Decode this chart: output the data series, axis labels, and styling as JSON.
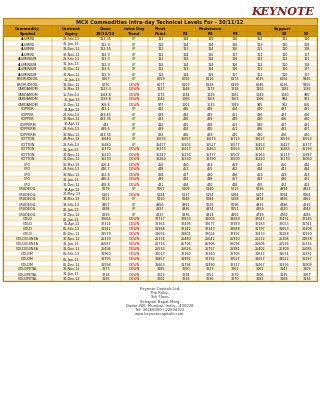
{
  "title": "MCX Commodities Intra-day Technical Levels For - 30/11/12",
  "rows": [
    [
      "ALUMINI",
      "28-Feb-13",
      "113.35",
      "UP",
      "113",
      "114",
      "115",
      "116",
      "112",
      "111",
      "110"
    ],
    [
      "ALUMINI",
      "31-Jan-13",
      "112.9",
      "UP",
      "112",
      "114",
      "114",
      "116",
      "112",
      "110",
      "108"
    ],
    [
      "ALUMINI",
      "31-Dec-12",
      "112.55",
      "UP",
      "112",
      "113",
      "114",
      "116",
      "111",
      "110",
      "108"
    ],
    [
      "ALUMINI",
      "30-Nov-12",
      "112.9",
      "UP",
      "112",
      "114",
      "115",
      "117",
      "111",
      "110",
      "107"
    ],
    [
      "ALUMINIUM",
      "28-Feb-13",
      "113.3",
      "UP",
      "113",
      "114",
      "114",
      "116",
      "113",
      "112",
      "111"
    ],
    [
      "ALUMINIUM",
      "31-Jan-13",
      "112.9",
      "UP",
      "112",
      "114",
      "114",
      "116",
      "112",
      "110",
      "108"
    ],
    [
      "ALUMINIUM",
      "31-Dec-12",
      "112.6",
      "UP",
      "112",
      "113",
      "114",
      "116",
      "111",
      "110",
      "107"
    ],
    [
      "ALUMINIUM",
      "30-Nov-12",
      "112.9",
      "UP",
      "112",
      "114",
      "115",
      "117",
      "111",
      "110",
      "107"
    ],
    [
      "BRCRUDEOIL",
      "15-Jan-13",
      "6067",
      "UP",
      "6059",
      "6092",
      "6116",
      "6173",
      "6035",
      "6002",
      "5945"
    ],
    [
      "BRCRUDEOIL",
      "13-Dec-12",
      "6076",
      "DOWN",
      "6077",
      "6107",
      "6138",
      "6199",
      "6046",
      "6016",
      "5955"
    ],
    [
      "CARDAMOM",
      "15-Mar-13",
      "1123.3",
      "DOWN",
      "1127",
      "1148",
      "1173",
      "1218",
      "1102",
      "1082",
      "1036"
    ],
    [
      "CARDAMOM",
      "15-Feb-13",
      "1068.8",
      "DOWN",
      "1075",
      "1094",
      "1120",
      "1165",
      "1049",
      "1030",
      "985"
    ],
    [
      "CARDAMOM",
      "15-Jan-13",
      "1029.8",
      "DOWN",
      "1042",
      "1066",
      "1103",
      "1163",
      "1006",
      "982",
      "922"
    ],
    [
      "CARDAMOM",
      "15-Dec-12",
      "968.8",
      "DOWN",
      "977",
      "1001",
      "1033",
      "1089",
      "945",
      "922",
      "866"
    ],
    [
      "COPPER",
      "30-Apr-13",
      "443.1",
      "UP",
      "442",
      "446",
      "448",
      "454",
      "440",
      "437",
      "431"
    ],
    [
      "COPPER",
      "28-Feb-13",
      "439.45",
      "UP",
      "439",
      "442",
      "445",
      "451",
      "436",
      "433",
      "426"
    ],
    [
      "COPPER",
      "30-Nov-12",
      "433.35",
      "UP",
      "433",
      "436",
      "439",
      "445",
      "430",
      "426",
      "420"
    ],
    [
      "COPPERM",
      "30-Apr-13",
      "443",
      "UP",
      "442",
      "445",
      "448",
      "453",
      "440",
      "437",
      "431"
    ],
    [
      "COPPERM",
      "28-Feb-13",
      "439.5",
      "UP",
      "439",
      "442",
      "445",
      "451",
      "436",
      "433",
      "427"
    ],
    [
      "COPPERM",
      "30-Nov-12",
      "433.35",
      "UP",
      "433",
      "436",
      "439",
      "445",
      "430",
      "426",
      "420"
    ],
    [
      "COTTON",
      "29-Mar-13",
      "16640",
      "UP",
      "16633",
      "16657",
      "16673",
      "16713",
      "16617",
      "16593",
      "16553"
    ],
    [
      "COTTON",
      "28-Feb-13",
      "16480",
      "UP",
      "16477",
      "16503",
      "16527",
      "16577",
      "16453",
      "16427",
      "16377"
    ],
    [
      "COTTON",
      "31-Jan-13",
      "16370",
      "DOWN",
      "16373",
      "16417",
      "16463",
      "16553",
      "16327",
      "16283",
      "16193"
    ],
    [
      "COTTON",
      "30-Nov-12",
      "16210",
      "DOWN",
      "16247",
      "16293",
      "16377",
      "16507",
      "16163",
      "16117",
      "15987"
    ],
    [
      "COTTON",
      "31-Dec-12",
      "16270",
      "DOWN",
      "16280",
      "16330",
      "16390",
      "16500",
      "16220",
      "16170",
      "16060"
    ],
    [
      "CPO",
      "30-Mar-13",
      "456.4",
      "DOWN",
      "456",
      "460",
      "463",
      "469",
      "453",
      "450",
      "444"
    ],
    [
      "CPO",
      "28-Feb-13",
      "446.7",
      "DOWN",
      "448",
      "451",
      "455",
      "462",
      "444",
      "441",
      "434"
    ],
    [
      "CPO",
      "30-Nov-12",
      "422.8",
      "DOWN",
      "424",
      "427",
      "430",
      "436",
      "421",
      "419",
      "413"
    ],
    [
      "CPO",
      "31-Jan-13",
      "436.4",
      "DOWN",
      "439",
      "442",
      "448",
      "457",
      "433",
      "430",
      "421"
    ],
    [
      "CPO",
      "31-Dec-12",
      "428.8",
      "DOWN",
      "431",
      "434",
      "440",
      "448",
      "425",
      "422",
      "413"
    ],
    [
      "CRUDEOIL",
      "19-Apr-13",
      "5079",
      "UP",
      "5067",
      "5109",
      "5140",
      "5213",
      "5036",
      "4994",
      "4921"
    ],
    [
      "CRUDEOIL",
      "20-May-13",
      "5121",
      "DOWN",
      "5124",
      "5137",
      "5154",
      "5184",
      "5107",
      "5094",
      "5064"
    ],
    [
      "CRUDEOIL",
      "19-Mar-13",
      "5013",
      "UP",
      "5010",
      "5048",
      "5084",
      "5158",
      "4974",
      "4936",
      "4862"
    ],
    [
      "CRUDEOIL",
      "19-Feb-13",
      "4957",
      "UP",
      "4956",
      "4991",
      "5026",
      "5096",
      "4921",
      "4886",
      "4816"
    ],
    [
      "CRUDEOIL",
      "21-Jan-13",
      "4898",
      "UP",
      "4897",
      "4936",
      "4974",
      "5051",
      "4859",
      "4820",
      "4743"
    ],
    [
      "CRUDEOIL",
      "18-Dec-12",
      "4839",
      "UP",
      "4837",
      "4876",
      "4914",
      "4991",
      "4799",
      "4760",
      "4683"
    ],
    [
      "GOLD",
      "05-Jun-13",
      "32664",
      "DOWN",
      "32717",
      "32833",
      "33003",
      "33289",
      "32547",
      "32431",
      "32145"
    ],
    [
      "GOLD",
      "05-Apr-13",
      "32314",
      "DOWN",
      "32365",
      "32495",
      "32677",
      "32989",
      "32183",
      "32053",
      "31741"
    ],
    [
      "GOLD",
      "05-Feb-13",
      "31942",
      "DOWN",
      "31998",
      "32142",
      "32343",
      "32688",
      "31797",
      "31653",
      "31308"
    ],
    [
      "GOLD",
      "05-Dec-12",
      "31579",
      "DOWN",
      "31656",
      "31801",
      "32024",
      "32392",
      "31433",
      "31288",
      "30920"
    ],
    [
      "GOLDGUINEA",
      "30-Nov-12",
      "25319",
      "DOWN",
      "25374",
      "25480",
      "25642",
      "25910",
      "25212",
      "25106",
      "24838"
    ],
    [
      "GOLDGUINEA",
      "31-Jan-13",
      "25687",
      "DOWN",
      "25716",
      "25796",
      "25906",
      "26096",
      "25606",
      "25526",
      "25336"
    ],
    [
      "GOLDGUINEA",
      "31-Dec-12",
      "25494",
      "DOWN",
      "25533",
      "25626",
      "25757",
      "25981",
      "25402",
      "25309",
      "25085"
    ],
    [
      "GOLDM",
      "05-Feb-13",
      "31960",
      "DOWN",
      "32017",
      "32160",
      "32360",
      "32703",
      "31817",
      "31674",
      "31331"
    ],
    [
      "GOLDM",
      "05-Jan-13",
      "31793",
      "DOWN",
      "31857",
      "31992",
      "32192",
      "32527",
      "31657",
      "31522",
      "31187"
    ],
    [
      "GOLDM",
      "05-Dec-12",
      "31598",
      "DOWN",
      "31663",
      "31794",
      "31990",
      "32317",
      "31467",
      "31336",
      "31009"
    ],
    [
      "GOLDPETAL",
      "30-Nov-12",
      "3177",
      "DOWN",
      "3185",
      "3200",
      "3223",
      "3261",
      "3162",
      "3147",
      "3109"
    ],
    [
      "GOLDPETAL",
      "31-Jan-13",
      "3218",
      "DOWN",
      "3223",
      "3234",
      "3251",
      "3279",
      "3206",
      "3195",
      "3167"
    ],
    [
      "GOLDPETAL",
      "31-Dec-12",
      "3195",
      "DOWN",
      "3202",
      "3216",
      "3236",
      "3270",
      "3182",
      "3168",
      "3134"
    ]
  ],
  "footer_lines": [
    "Keynote Capitals Ltd.",
    "The Ruby,",
    "9th Floor,",
    "Senapati Bapat Marg,",
    "Dadar (W), Mumbai, India – 400028",
    "Tel: 30266000 / 22694322",
    "www.keynotecapitals.com"
  ],
  "bg_color": "#FFFFFF",
  "table_header_bg": "#D4940A",
  "table_title_bg": "#E8B84B",
  "table_row_even": "#FAF0D8",
  "table_row_odd": "#FFFFFF",
  "table_border": "#B8860B",
  "keynote_color": "#8B1A1A",
  "up_color": "#006600",
  "down_color": "#CC0000",
  "text_color": "#111111"
}
